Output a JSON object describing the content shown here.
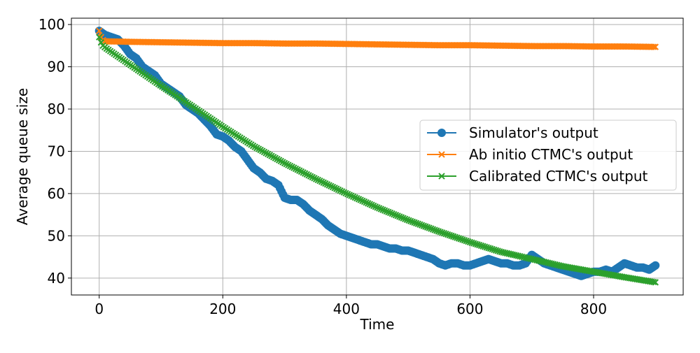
{
  "chart_data": {
    "type": "line",
    "title": "",
    "xlabel": "Time",
    "ylabel": "Average queue size",
    "xlim": [
      -45,
      945
    ],
    "ylim": [
      36,
      101.5
    ],
    "xticks": [
      0,
      200,
      400,
      600,
      800
    ],
    "yticks": [
      40,
      50,
      60,
      70,
      80,
      90,
      100
    ],
    "grid": true,
    "legend_position": "center-right",
    "series": [
      {
        "name": "Simulator's output",
        "color": "#1f77b4",
        "marker": "circle",
        "x": [
          0,
          5,
          10,
          20,
          30,
          40,
          50,
          60,
          70,
          80,
          90,
          100,
          110,
          120,
          130,
          140,
          150,
          160,
          170,
          180,
          190,
          200,
          210,
          220,
          230,
          240,
          250,
          260,
          270,
          280,
          290,
          300,
          310,
          320,
          330,
          340,
          350,
          360,
          370,
          380,
          390,
          400,
          410,
          420,
          430,
          440,
          450,
          460,
          470,
          480,
          490,
          500,
          510,
          520,
          530,
          540,
          550,
          560,
          570,
          580,
          590,
          600,
          610,
          620,
          630,
          640,
          650,
          660,
          670,
          680,
          690,
          700,
          710,
          720,
          730,
          740,
          750,
          760,
          770,
          780,
          790,
          800,
          810,
          820,
          830,
          840,
          850,
          860,
          870,
          880,
          890,
          900
        ],
        "y": [
          98.5,
          98,
          97.5,
          97,
          96.5,
          95,
          93,
          92,
          90,
          89,
          88,
          86,
          85,
          84,
          83,
          81,
          80,
          79,
          77.5,
          76,
          74,
          73.5,
          72.5,
          71,
          70,
          68,
          66,
          65,
          63.5,
          63,
          62,
          59,
          58.5,
          58.5,
          57.5,
          56,
          55,
          54,
          52.5,
          51.5,
          50.5,
          50,
          49.5,
          49,
          48.5,
          48,
          48,
          47.5,
          47,
          47,
          46.5,
          46.5,
          46,
          45.5,
          45,
          44.5,
          43.5,
          43,
          43.5,
          43.5,
          43,
          43,
          43.5,
          44,
          44.5,
          44,
          43.5,
          43.5,
          43,
          43,
          43.5,
          45.5,
          44.5,
          43.5,
          43,
          42.5,
          42,
          41.5,
          41,
          40.5,
          41,
          41.5,
          41.5,
          42,
          41.5,
          42.5,
          43.5,
          43,
          42.5,
          42.5,
          42,
          43
        ]
      },
      {
        "name": "Ab initio CTMC's output",
        "color": "#ff7f0e",
        "marker": "x",
        "x": [
          0,
          3,
          6,
          10,
          15,
          20,
          50,
          100,
          150,
          200,
          250,
          300,
          350,
          400,
          450,
          500,
          550,
          600,
          650,
          700,
          750,
          800,
          850,
          900
        ],
        "y": [
          98.5,
          97,
          96.3,
          96,
          96,
          96,
          95.9,
          95.8,
          95.7,
          95.6,
          95.6,
          95.5,
          95.5,
          95.4,
          95.3,
          95.2,
          95.1,
          95.1,
          95,
          94.9,
          94.9,
          94.8,
          94.8,
          94.7
        ]
      },
      {
        "name": "Calibrated CTMC's output",
        "color": "#2ca02c",
        "marker": "x",
        "x": [
          0,
          2,
          4,
          6,
          10,
          20,
          40,
          60,
          80,
          100,
          150,
          200,
          250,
          300,
          350,
          400,
          450,
          500,
          550,
          600,
          650,
          700,
          750,
          800,
          850,
          900
        ],
        "y": [
          97,
          96,
          95.5,
          95,
          94.5,
          93.5,
          91.5,
          89.5,
          87.5,
          85.5,
          80.7,
          75.8,
          71.2,
          67.2,
          63.5,
          60,
          56.7,
          53.7,
          51,
          48.5,
          46.2,
          44.5,
          42.8,
          41.5,
          40.2,
          39
        ]
      }
    ]
  }
}
